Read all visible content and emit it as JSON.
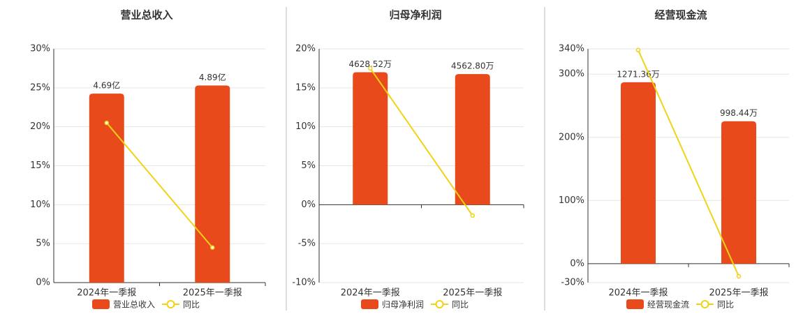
{
  "chart_data": [
    {
      "type": "bar-line",
      "title": "营业总收入",
      "categories": [
        "2024年一季报",
        "2025年一季报"
      ],
      "series": [
        {
          "name": "营业总收入",
          "color": "#e84a1c",
          "axis": "y2",
          "values": [
            4.69,
            4.89
          ],
          "value_labels": [
            "4.69亿",
            "4.89亿"
          ]
        },
        {
          "name": "同比",
          "color": "#f2d215",
          "values": [
            20.5,
            4.5
          ]
        }
      ],
      "ylim": [
        0,
        30
      ],
      "yticks": [
        {
          "value": 0,
          "label": "0%"
        },
        {
          "value": 5,
          "label": "5%"
        },
        {
          "value": 10,
          "label": "10%"
        },
        {
          "value": 15,
          "label": "15%"
        },
        {
          "value": 20,
          "label": "20%"
        },
        {
          "value": 25,
          "label": "25%"
        },
        {
          "value": 30,
          "label": "30%"
        }
      ],
      "y2lim": [
        0,
        5.8
      ],
      "grid": true
    },
    {
      "type": "bar-line",
      "title": "归母净利润",
      "categories": [
        "2024年一季报",
        "2025年一季报"
      ],
      "series": [
        {
          "name": "归母净利润",
          "color": "#e84a1c",
          "axis": "y2",
          "values": [
            4628.52,
            4562.8
          ],
          "value_labels": [
            "4628.52万",
            "4562.80万"
          ]
        },
        {
          "name": "同比",
          "color": "#f2d215",
          "values": [
            17.5,
            -1.4
          ]
        }
      ],
      "ylim": [
        -10,
        20
      ],
      "yticks": [
        {
          "value": -10,
          "label": "-10%"
        },
        {
          "value": -5,
          "label": "-5%"
        },
        {
          "value": 0,
          "label": "0%"
        },
        {
          "value": 5,
          "label": "5%"
        },
        {
          "value": 10,
          "label": "10%"
        },
        {
          "value": 15,
          "label": "15%"
        },
        {
          "value": 20,
          "label": "20%"
        }
      ],
      "y2lim": [
        -2722,
        5445
      ],
      "grid": true
    },
    {
      "type": "bar-line",
      "title": "经营现金流",
      "categories": [
        "2024年一季报",
        "2025年一季报"
      ],
      "series": [
        {
          "name": "经营现金流",
          "color": "#e84a1c",
          "axis": "y2",
          "values": [
            1271.36,
            998.44
          ],
          "value_labels": [
            "1271.36万",
            "998.44万"
          ]
        },
        {
          "name": "同比",
          "color": "#f2d215",
          "values": [
            338,
            -20
          ]
        }
      ],
      "ylim": [
        -30,
        340
      ],
      "yticks": [
        {
          "value": -30,
          "label": "-30%"
        },
        {
          "value": 0,
          "label": "0%"
        },
        {
          "value": 100,
          "label": "100%"
        },
        {
          "value": 200,
          "label": "200%"
        },
        {
          "value": 300,
          "label": "300%"
        },
        {
          "value": 340,
          "label": "340%"
        }
      ],
      "y2lim": [
        -132.8,
        1505.6
      ],
      "grid": true
    }
  ]
}
